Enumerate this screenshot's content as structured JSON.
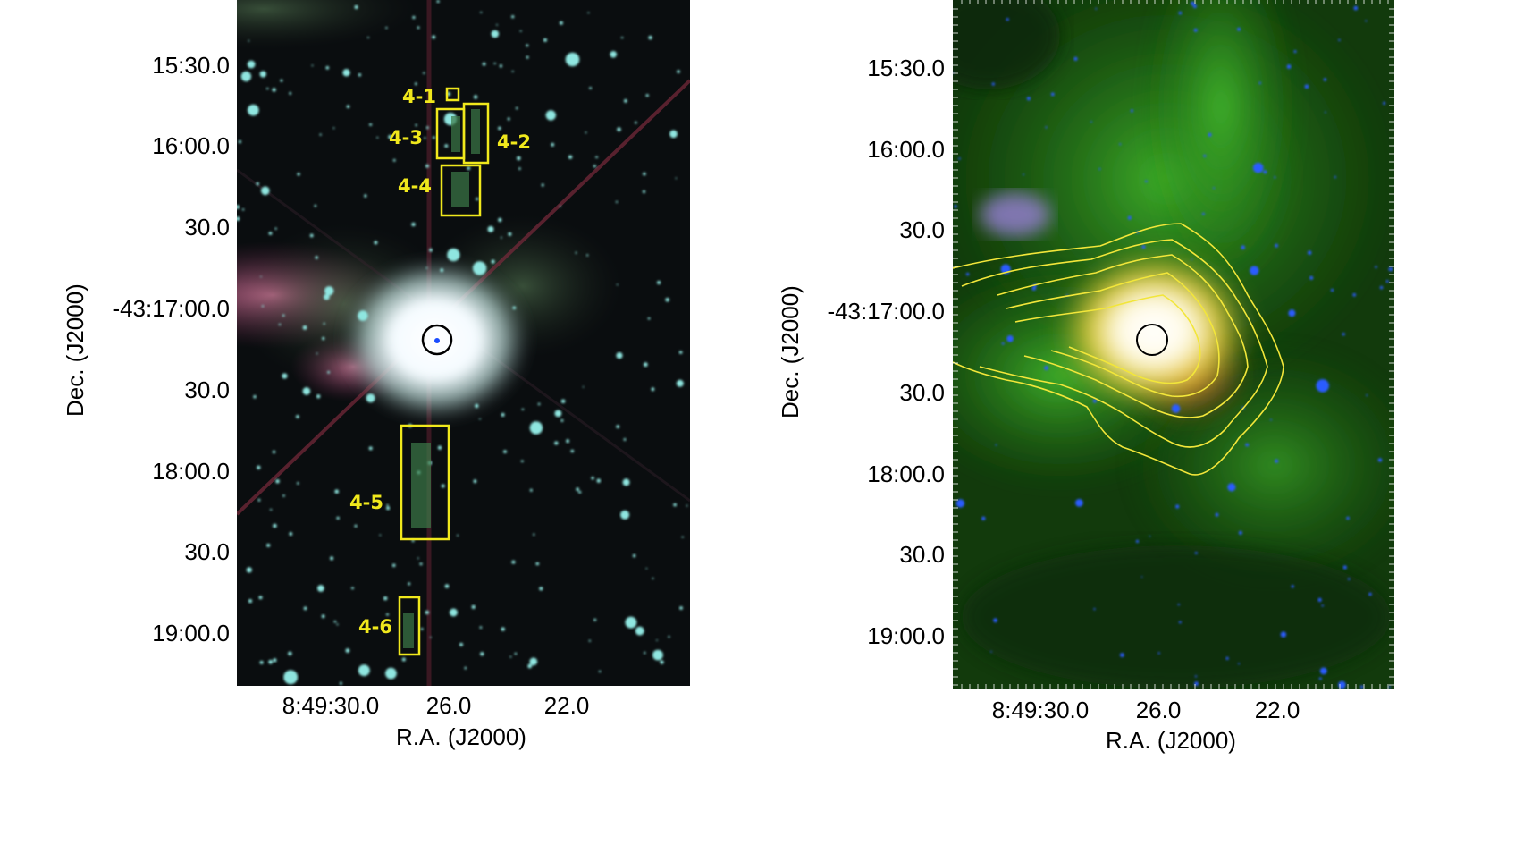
{
  "left_panel": {
    "dec_ticks": [
      "15:30.0",
      "16:00.0",
      "30.0",
      "-43:17:00.0",
      "30.0",
      "18:00.0",
      "30.0",
      "19:00.0"
    ],
    "ra_ticks": [
      "8:49:30.0",
      "26.0",
      "22.0"
    ],
    "xlabel": "R.A. (J2000)",
    "ylabel": "Dec. (J2000)",
    "regions": [
      "4-1",
      "4-2",
      "4-3",
      "4-4",
      "4-5",
      "4-6"
    ]
  },
  "right_panel": {
    "dec_ticks": [
      "15:30.0",
      "16:00.0",
      "30.0",
      "-43:17:00.0",
      "30.0",
      "18:00.0",
      "30.0",
      "19:00.0"
    ],
    "ra_ticks": [
      "8:49:30.0",
      "26.0",
      "22.0"
    ],
    "xlabel": "R.A. (J2000)",
    "ylabel": "Dec. (J2000)"
  },
  "colors": {
    "region_box": "#f0e81c",
    "contour": "#f2e63a",
    "marker": "#000000"
  }
}
